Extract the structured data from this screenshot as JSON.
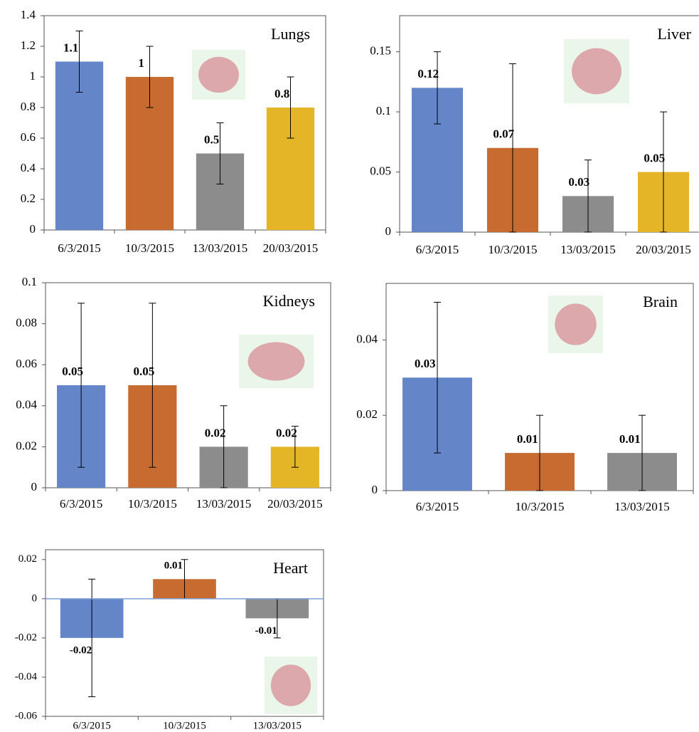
{
  "chart_data": [
    {
      "type": "bar",
      "title": "Lungs",
      "categories": [
        "6/3/2015",
        "10/3/2015",
        "13/03/2015",
        "20/03/2015"
      ],
      "values": [
        1.1,
        1,
        0.5,
        0.8
      ],
      "errors": [
        0.2,
        0.2,
        0.2,
        0.2
      ],
      "colors": [
        "#6585c9",
        "#c76b30",
        "#8c8c8c",
        "#e4b526"
      ],
      "ylim": [
        0,
        1.4
      ],
      "yticks": [
        0,
        0.2,
        0.4,
        0.6,
        0.8,
        1,
        1.2,
        1.4
      ]
    },
    {
      "type": "bar",
      "title": "Liver",
      "categories": [
        "6/3/2015",
        "10/3/2015",
        "13/03/2015",
        "20/03/2015"
      ],
      "values": [
        0.12,
        0.07,
        0.03,
        0.05
      ],
      "errors": [
        0.03,
        0.07,
        0.03,
        0.05
      ],
      "colors": [
        "#6585c9",
        "#c76b30",
        "#8c8c8c",
        "#e4b526"
      ],
      "ylim": [
        0,
        0.18
      ],
      "yticks": [
        0,
        0.05,
        0.1,
        0.15
      ]
    },
    {
      "type": "bar",
      "title": "Kidneys",
      "categories": [
        "6/3/2015",
        "10/3/2015",
        "13/03/2015",
        "20/03/2015"
      ],
      "values": [
        0.05,
        0.05,
        0.02,
        0.02
      ],
      "errors": [
        0.04,
        0.04,
        0.02,
        0.01
      ],
      "colors": [
        "#6585c9",
        "#c76b30",
        "#8c8c8c",
        "#e4b526"
      ],
      "ylim": [
        0,
        0.1
      ],
      "yticks": [
        0,
        0.02,
        0.04,
        0.06,
        0.08,
        0.1
      ]
    },
    {
      "type": "bar",
      "title": "Brain",
      "categories": [
        "6/3/2015",
        "10/3/2015",
        "13/03/2015"
      ],
      "values": [
        0.03,
        0.01,
        0.01
      ],
      "errors": [
        0.02,
        0.01,
        0.01
      ],
      "colors": [
        "#6585c9",
        "#c76b30",
        "#8c8c8c"
      ],
      "ylim": [
        0,
        0.055
      ],
      "yticks": [
        0,
        0.02,
        0.04
      ]
    },
    {
      "type": "bar",
      "title": "Heart",
      "categories": [
        "6/3/2015",
        "10/3/2015",
        "13/03/2015"
      ],
      "values": [
        -0.02,
        0.01,
        -0.01
      ],
      "errors": [
        0.03,
        0.01,
        0.01
      ],
      "colors": [
        "#6585c9",
        "#c76b30",
        "#8c8c8c"
      ],
      "ylim": [
        -0.06,
        0.025
      ],
      "yticks": [
        -0.06,
        -0.04,
        -0.02,
        0,
        0.02
      ]
    }
  ]
}
